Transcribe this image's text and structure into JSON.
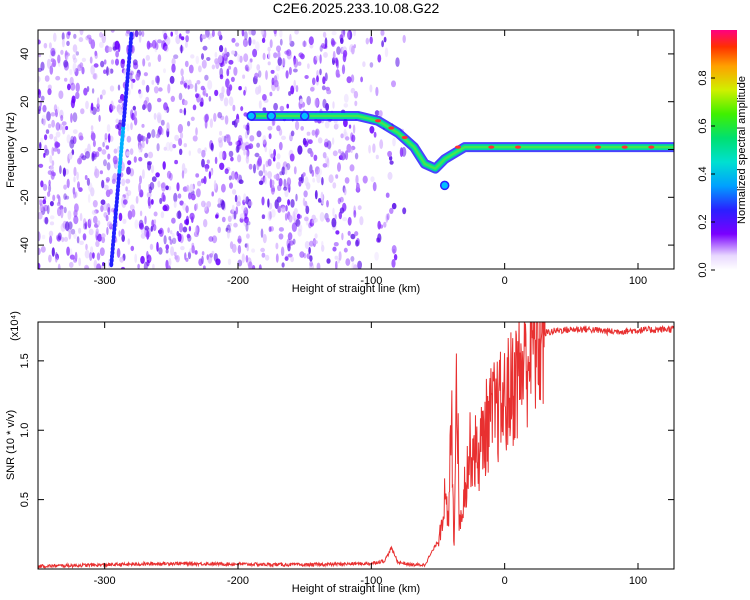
{
  "title": "C2E6.2025.233.10.08.G22",
  "chart_data": [
    {
      "type": "heatmap",
      "xlabel": "Height of straight line (km)",
      "ylabel": "Frequency (Hz)",
      "xlim": [
        -350,
        127
      ],
      "ylim": [
        -50,
        50
      ],
      "xticks": [
        "-300",
        "-200",
        "-100",
        "0",
        "100"
      ],
      "yticks": [
        "-40",
        "-20",
        "0",
        "20",
        "40"
      ],
      "colorbar": {
        "label": "Normalized spectral amplitude",
        "range": [
          0,
          1
        ],
        "ticks": [
          "0.0",
          "0.2",
          "0.4",
          "0.6",
          "0.8"
        ]
      },
      "signal_track": [
        {
          "x": -190,
          "y": 14
        },
        {
          "x": -150,
          "y": 14
        },
        {
          "x": -110,
          "y": 14
        },
        {
          "x": -95,
          "y": 12
        },
        {
          "x": -80,
          "y": 7
        },
        {
          "x": -68,
          "y": 1
        },
        {
          "x": -60,
          "y": -6
        },
        {
          "x": -52,
          "y": -8
        },
        {
          "x": -45,
          "y": -4
        },
        {
          "x": -30,
          "y": 1
        },
        {
          "x": 0,
          "y": 1
        },
        {
          "x": 40,
          "y": 1
        },
        {
          "x": 80,
          "y": 1
        },
        {
          "x": 127,
          "y": 1
        }
      ],
      "diagonal_track": [
        {
          "x": -295,
          "y": -48
        },
        {
          "x": -280,
          "y": 48
        }
      ]
    },
    {
      "type": "line",
      "xlabel": "Height of straight line (km)",
      "ylabel": "SNR (10 * v/v)",
      "scale_note": "(x10⁴)",
      "xlim": [
        -350,
        127
      ],
      "ylim": [
        0,
        17800
      ],
      "xticks": [
        "-300",
        "-200",
        "-100",
        "0",
        "100"
      ],
      "yticks": [
        "0.5",
        "1.0",
        "1.5"
      ],
      "series": [
        {
          "color": "#e83030",
          "x": [
            -350,
            -300,
            -250,
            -200,
            -150,
            -100,
            -90,
            -85,
            -80,
            -70,
            -60,
            -50,
            -45,
            -42,
            -40,
            -38,
            -36,
            -34,
            -30,
            -25,
            -20,
            -15,
            -10,
            -5,
            0,
            5,
            10,
            15,
            20,
            30,
            40,
            60,
            80,
            100,
            127
          ],
          "y": [
            200,
            300,
            400,
            350,
            300,
            400,
            600,
            1500,
            500,
            300,
            300,
            2000,
            5000,
            3000,
            12000,
            1500,
            16000,
            3000,
            6000,
            9000,
            8000,
            10000,
            11000,
            11500,
            12000,
            13000,
            14000,
            15000,
            16000,
            17000,
            17200,
            17300,
            17100,
            17200,
            17300
          ]
        }
      ]
    }
  ]
}
